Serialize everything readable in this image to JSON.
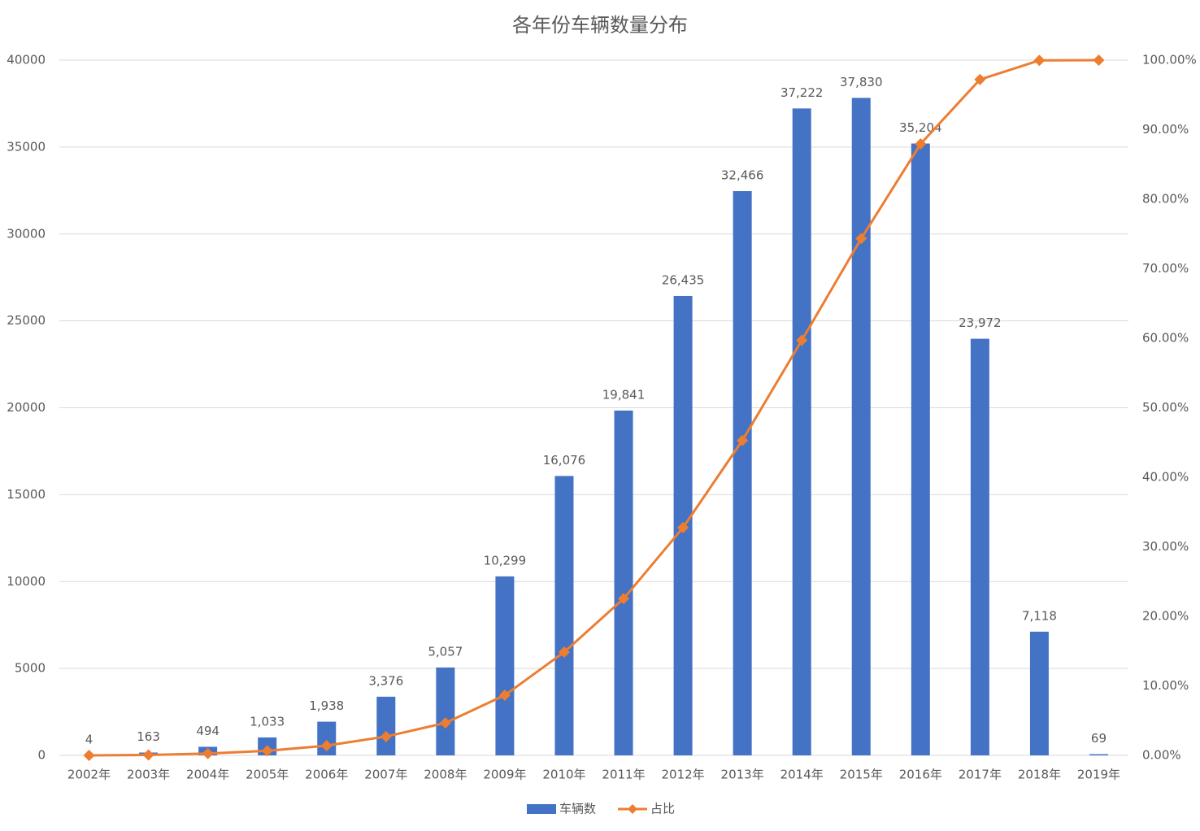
{
  "chart_data": {
    "type": "combo",
    "title": "各年份车辆数量分布",
    "categories": [
      "2002年",
      "2003年",
      "2004年",
      "2005年",
      "2006年",
      "2007年",
      "2008年",
      "2009年",
      "2010年",
      "2011年",
      "2012年",
      "2013年",
      "2014年",
      "2015年",
      "2016年",
      "2017年",
      "2018年",
      "2019年"
    ],
    "series": [
      {
        "name": "车辆数",
        "type": "bar",
        "color": "#4472c4",
        "values": [
          4,
          163,
          494,
          1033,
          1938,
          3376,
          5057,
          10299,
          16076,
          19841,
          26435,
          32466,
          37222,
          37830,
          35204,
          23972,
          7118,
          69
        ],
        "value_labels": [
          "4",
          "163",
          "494",
          "1,033",
          "1,938",
          "3,376",
          "5,057",
          "10,299",
          "16,076",
          "19,841",
          "26,435",
          "32,466",
          "37,222",
          "37,830",
          "35,204",
          "23,972",
          "7,118",
          "69"
        ]
      },
      {
        "name": "占比",
        "type": "line",
        "axis": "y2",
        "color": "#ed7d31",
        "values": [
          0.0,
          0.06,
          0.26,
          0.66,
          1.4,
          2.71,
          4.67,
          8.65,
          14.86,
          22.54,
          32.76,
          45.31,
          59.71,
          74.34,
          87.95,
          97.22,
          99.97,
          100.0
        ]
      }
    ],
    "ylim": [
      0,
      40000
    ],
    "yticks": [
      0,
      5000,
      10000,
      15000,
      20000,
      25000,
      30000,
      35000,
      40000
    ],
    "y2lim": [
      0,
      100
    ],
    "y2ticks": [
      {
        "value": 0,
        "label": "0.00%"
      },
      {
        "value": 10,
        "label": "10.00%"
      },
      {
        "value": 20,
        "label": "20.00%"
      },
      {
        "value": 30,
        "label": "30.00%"
      },
      {
        "value": 40,
        "label": "40.00%"
      },
      {
        "value": 50,
        "label": "50.00%"
      },
      {
        "value": 60,
        "label": "60.00%"
      },
      {
        "value": 70,
        "label": "70.00%"
      },
      {
        "value": 80,
        "label": "80.00%"
      },
      {
        "value": 90,
        "label": "90.00%"
      },
      {
        "value": 100,
        "label": "100.00%"
      }
    ],
    "grid": true,
    "legend": "bottom"
  }
}
